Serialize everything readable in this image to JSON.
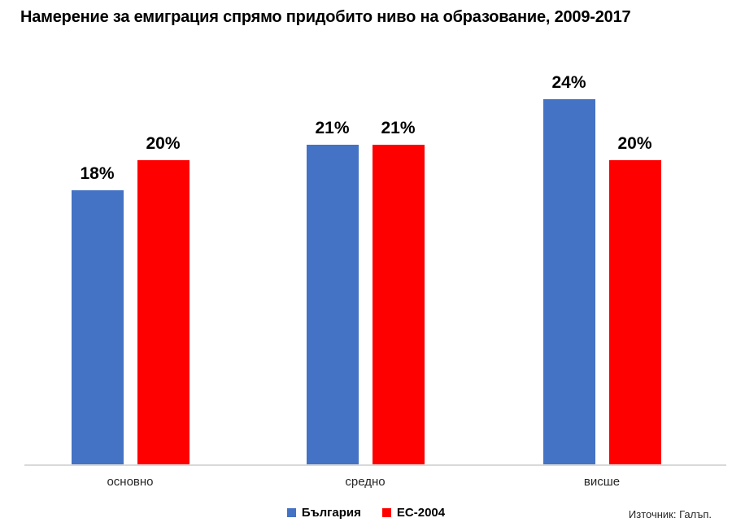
{
  "chart_data": {
    "type": "bar",
    "title": "Намерение за емиграция спрямо придобито ниво на образование, 2009-2017",
    "categories": [
      "основно",
      "средно",
      "висше"
    ],
    "series": [
      {
        "name": "България",
        "color": "#4472C4",
        "values": [
          18,
          21,
          24
        ]
      },
      {
        "name": "ЕС-2004",
        "color": "#FF0000",
        "values": [
          20,
          21,
          20
        ]
      }
    ],
    "value_label_suffix": "%",
    "ylim": [
      0,
      26
    ],
    "grid": false,
    "legend_position": "bottom-center",
    "axis_line_color": "#D9D9D9",
    "xlabel": "",
    "ylabel": ""
  },
  "source_note": "Източник: Галъп."
}
